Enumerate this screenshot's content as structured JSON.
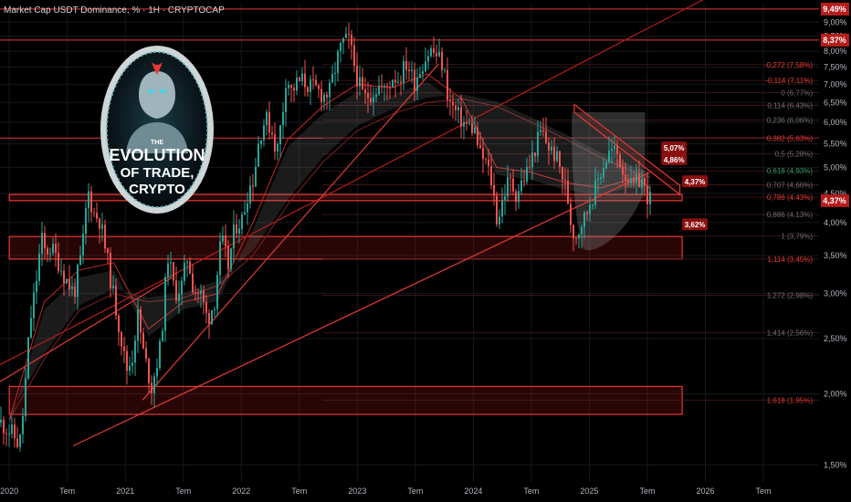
{
  "header": {
    "title": "Market Cap USDT Dominance, % · 1H · CRYPTOCAP"
  },
  "logo": {
    "line1": "THE",
    "line2": "EVOLUTION",
    "line3": "OF TRADE,",
    "line4": "CRYPTO"
  },
  "colors": {
    "background": "#000000",
    "up": "#26a69a",
    "down": "#ef5350",
    "level": "#e53935",
    "fib": "#b71c1c",
    "text": "#d1d4dc",
    "axisText": "#b2b5be"
  },
  "chart_data": {
    "type": "candlestick",
    "title": "Market Cap USDT Dominance, %",
    "interval": "1H",
    "source": "CRYPTOCAP",
    "ylim": [
      1.4,
      9.7
    ],
    "y_scale": "log",
    "y_ticks": [
      "1,50%",
      "2,00%",
      "2,50%",
      "3,00%",
      "3,50%",
      "4,00%",
      "4,50%",
      "5,00%",
      "5,50%",
      "6,00%",
      "6,50%",
      "7,00%",
      "7,50%",
      "8,00%",
      "8,50%",
      "9,00%"
    ],
    "y_tick_values": [
      1.5,
      2.0,
      2.5,
      3.0,
      3.5,
      4.0,
      4.5,
      5.0,
      5.5,
      6.0,
      6.5,
      7.0,
      7.5,
      8.0,
      8.5,
      9.0
    ],
    "x_ticks": [
      "2020",
      "Tem",
      "2021",
      "Tem",
      "2022",
      "Tem",
      "2023",
      "Tem",
      "2024",
      "Tem",
      "2025",
      "Tem",
      "2026",
      "Tem"
    ],
    "x_tick_values": [
      2020.0,
      2020.5,
      2021.0,
      2021.5,
      2022.0,
      2022.5,
      2023.0,
      2023.5,
      2024.0,
      2024.5,
      2025.0,
      2025.5,
      2026.0,
      2026.5
    ],
    "xlim": [
      2019.92,
      2026.98
    ],
    "price_path": [
      [
        2019.92,
        1.78
      ],
      [
        2020.02,
        1.7
      ],
      [
        2020.08,
        1.62
      ],
      [
        2020.12,
        1.92
      ],
      [
        2020.17,
        2.65
      ],
      [
        2020.22,
        3.1
      ],
      [
        2020.27,
        3.75
      ],
      [
        2020.3,
        3.55
      ],
      [
        2020.35,
        3.62
      ],
      [
        2020.42,
        3.4
      ],
      [
        2020.48,
        3.18
      ],
      [
        2020.55,
        3.0
      ],
      [
        2020.62,
        3.55
      ],
      [
        2020.67,
        4.55
      ],
      [
        2020.72,
        4.15
      ],
      [
        2020.77,
        4.05
      ],
      [
        2020.82,
        3.6
      ],
      [
        2020.88,
        3.05
      ],
      [
        2020.95,
        2.55
      ],
      [
        2021.0,
        2.2
      ],
      [
        2021.05,
        2.3
      ],
      [
        2021.1,
        2.75
      ],
      [
        2021.15,
        2.35
      ],
      [
        2021.22,
        2.05
      ],
      [
        2021.3,
        2.45
      ],
      [
        2021.36,
        3.5
      ],
      [
        2021.42,
        3.0
      ],
      [
        2021.48,
        3.1
      ],
      [
        2021.53,
        3.5
      ],
      [
        2021.58,
        3.05
      ],
      [
        2021.64,
        3.0
      ],
      [
        2021.7,
        2.7
      ],
      [
        2021.76,
        2.9
      ],
      [
        2021.82,
        3.75
      ],
      [
        2021.88,
        3.35
      ],
      [
        2021.94,
        3.95
      ],
      [
        2022.0,
        4.05
      ],
      [
        2022.05,
        4.55
      ],
      [
        2022.1,
        4.8
      ],
      [
        2022.15,
        5.7
      ],
      [
        2022.2,
        6.1
      ],
      [
        2022.25,
        5.85
      ],
      [
        2022.3,
        5.3
      ],
      [
        2022.35,
        6.3
      ],
      [
        2022.38,
        7.3
      ],
      [
        2022.42,
        6.8
      ],
      [
        2022.48,
        7.05
      ],
      [
        2022.52,
        7.1
      ],
      [
        2022.56,
        7.0
      ],
      [
        2022.6,
        6.9
      ],
      [
        2022.64,
        6.85
      ],
      [
        2022.7,
        6.7
      ],
      [
        2022.75,
        6.75
      ],
      [
        2022.8,
        7.45
      ],
      [
        2022.83,
        7.9
      ],
      [
        2022.87,
        8.3
      ],
      [
        2022.92,
        8.35
      ],
      [
        2022.97,
        7.5
      ],
      [
        2023.0,
        7.05
      ],
      [
        2023.05,
        6.6
      ],
      [
        2023.12,
        6.8
      ],
      [
        2023.18,
        6.95
      ],
      [
        2023.23,
        6.8
      ],
      [
        2023.3,
        7.25
      ],
      [
        2023.35,
        7.15
      ],
      [
        2023.42,
        7.65
      ],
      [
        2023.48,
        7.05
      ],
      [
        2023.55,
        7.6
      ],
      [
        2023.62,
        8.05
      ],
      [
        2023.68,
        7.85
      ],
      [
        2023.73,
        7.55
      ],
      [
        2023.78,
        6.55
      ],
      [
        2023.85,
        6.2
      ],
      [
        2023.92,
        5.95
      ],
      [
        2024.0,
        5.85
      ],
      [
        2024.05,
        5.25
      ],
      [
        2024.1,
        5.1
      ],
      [
        2024.15,
        4.7
      ],
      [
        2024.2,
        4.0
      ],
      [
        2024.25,
        4.45
      ],
      [
        2024.3,
        4.75
      ],
      [
        2024.36,
        4.5
      ],
      [
        2024.42,
        4.75
      ],
      [
        2024.48,
        5.05
      ],
      [
        2024.53,
        5.45
      ],
      [
        2024.58,
        5.8
      ],
      [
        2024.62,
        5.55
      ],
      [
        2024.66,
        5.35
      ],
      [
        2024.7,
        5.25
      ],
      [
        2024.75,
        4.9
      ],
      [
        2024.8,
        4.5
      ],
      [
        2024.84,
        3.9
      ],
      [
        2024.88,
        3.8
      ],
      [
        2024.92,
        4.0
      ],
      [
        2024.96,
        4.1
      ],
      [
        2025.0,
        4.4
      ],
      [
        2025.04,
        4.55
      ],
      [
        2025.08,
        4.85
      ],
      [
        2025.12,
        5.1
      ],
      [
        2025.16,
        5.3
      ],
      [
        2025.2,
        5.35
      ],
      [
        2025.24,
        5.25
      ],
      [
        2025.28,
        4.95
      ],
      [
        2025.32,
        4.85
      ],
      [
        2025.36,
        4.55
      ],
      [
        2025.4,
        4.7
      ],
      [
        2025.44,
        4.8
      ],
      [
        2025.47,
        4.55
      ],
      [
        2025.5,
        4.45
      ],
      [
        2025.52,
        4.38
      ]
    ],
    "moving_averages": [
      {
        "name": "slow",
        "points": [
          [
            2020.0,
            1.8
          ],
          [
            2020.3,
            2.3
          ],
          [
            2020.6,
            2.8
          ],
          [
            2020.9,
            3.0
          ],
          [
            2021.2,
            2.9
          ],
          [
            2021.5,
            2.95
          ],
          [
            2021.8,
            3.1
          ],
          [
            2022.1,
            3.5
          ],
          [
            2022.4,
            4.3
          ],
          [
            2022.7,
            5.1
          ],
          [
            2023.0,
            5.8
          ],
          [
            2023.3,
            6.2
          ],
          [
            2023.6,
            6.5
          ],
          [
            2023.9,
            6.6
          ],
          [
            2024.2,
            6.4
          ],
          [
            2024.5,
            6.0
          ],
          [
            2024.8,
            5.6
          ],
          [
            2025.1,
            5.2
          ],
          [
            2025.4,
            4.9
          ],
          [
            2025.52,
            4.8
          ]
        ]
      },
      {
        "name": "fast",
        "points": [
          [
            2020.0,
            1.8
          ],
          [
            2020.3,
            2.9
          ],
          [
            2020.6,
            3.3
          ],
          [
            2020.9,
            3.4
          ],
          [
            2021.2,
            2.6
          ],
          [
            2021.5,
            2.9
          ],
          [
            2021.8,
            3.0
          ],
          [
            2022.1,
            4.0
          ],
          [
            2022.4,
            5.6
          ],
          [
            2022.7,
            6.4
          ],
          [
            2023.0,
            7.0
          ],
          [
            2023.3,
            6.9
          ],
          [
            2023.6,
            7.3
          ],
          [
            2023.9,
            6.6
          ],
          [
            2024.2,
            5.0
          ],
          [
            2024.5,
            4.9
          ],
          [
            2024.8,
            4.7
          ],
          [
            2025.1,
            4.6
          ],
          [
            2025.4,
            4.8
          ],
          [
            2025.52,
            4.6
          ]
        ]
      }
    ],
    "horizontal_levels": [
      9.49,
      8.37,
      5.63
    ],
    "fib_levels": [
      {
        "label": "-0,272 (7,58%)",
        "value": 7.58
      },
      {
        "label": "-0,114 (7,11%)",
        "value": 7.11
      },
      {
        "label": "0 (6,77%)",
        "value": 6.77
      },
      {
        "label": "0,114 (6,43%)",
        "value": 6.43
      },
      {
        "label": "0,236 (6,06%)",
        "value": 6.06
      },
      {
        "label": "0,382 (5,63%)",
        "value": 5.63
      },
      {
        "label": "0,5 (5,28%)",
        "value": 5.28
      },
      {
        "label": "0,618 (4,93%)",
        "value": 4.93
      },
      {
        "label": "0,707 (4,66%)",
        "value": 4.66
      },
      {
        "label": "0,786 (4,43%)",
        "value": 4.43
      },
      {
        "label": "0,886 (4,13%)",
        "value": 4.13
      },
      {
        "label": "1 (3,79%)",
        "value": 3.79
      },
      {
        "label": "1,114 (3,45%)",
        "value": 3.45
      },
      {
        "label": "1,272 (2,98%)",
        "value": 2.98
      },
      {
        "label": "1,414 (2,56%)",
        "value": 2.56
      },
      {
        "label": "1,618 (1,95%)",
        "value": 1.95
      }
    ],
    "zones": [
      {
        "y1": 4.37,
        "y2": 4.48,
        "x1": 2020.0,
        "x2": 2025.8
      },
      {
        "y1": 3.45,
        "y2": 3.78,
        "x1": 2020.0,
        "x2": 2025.8
      },
      {
        "y1": 1.84,
        "y2": 2.06,
        "x1": 2020.0,
        "x2": 2025.8
      }
    ],
    "trendlines": [
      {
        "points": [
          [
            2019.92,
            2.25
          ],
          [
            2026.12,
            10.2
          ]
        ],
        "color": "#b71c1c"
      },
      {
        "points": [
          [
            2021.15,
            1.95
          ],
          [
            2023.7,
            7.6
          ]
        ],
        "color": "#e53935"
      },
      {
        "points": [
          [
            2020.55,
            1.62
          ],
          [
            2025.52,
            4.9
          ]
        ],
        "color": "#e53935"
      },
      {
        "points": [
          [
            2019.92,
            2.1
          ],
          [
            2021.4,
            3.2
          ]
        ],
        "color": "#e53935"
      }
    ],
    "channel": {
      "top": [
        [
          2024.87,
          6.45
        ],
        [
          2025.78,
          4.65
        ]
      ],
      "bottom": [
        [
          2024.87,
          6.25
        ],
        [
          2025.78,
          4.48
        ]
      ]
    },
    "annotations": [
      {
        "text": "5,07%",
        "x": 2025.62,
        "y": 5.39
      },
      {
        "text": "4,86%",
        "x": 2025.62,
        "y": 5.14
      },
      {
        "text": "4,37%",
        "x": 2025.8,
        "y": 4.7
      },
      {
        "text": "3,62%",
        "x": 2025.8,
        "y": 3.95
      }
    ],
    "price_labels": [
      {
        "text": "9,49%",
        "value": 9.49
      },
      {
        "text": "8,37%",
        "value": 8.37
      },
      {
        "text": "4,37%",
        "value": 4.37
      }
    ]
  }
}
